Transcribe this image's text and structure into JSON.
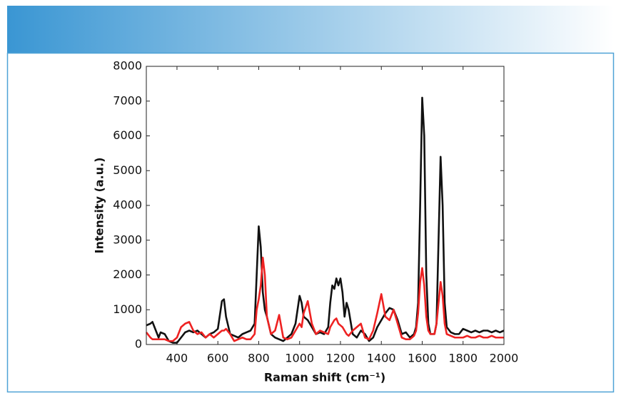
{
  "chart_data": {
    "type": "line",
    "xlabel": "Raman shift (cm⁻¹)",
    "ylabel": "Intensity (a.u.)",
    "xlim": [
      250,
      2000
    ],
    "xticks": [
      400,
      600,
      800,
      1000,
      1200,
      1400,
      1600,
      1800,
      2000
    ],
    "ylim": [
      0,
      8000
    ],
    "yticks": [
      0,
      1000,
      2000,
      3000,
      4000,
      5000,
      6000,
      7000,
      8000
    ],
    "x": [
      250,
      270,
      280,
      290,
      300,
      310,
      320,
      340,
      360,
      380,
      400,
      420,
      440,
      460,
      480,
      500,
      520,
      540,
      560,
      580,
      600,
      620,
      630,
      640,
      660,
      680,
      700,
      720,
      740,
      760,
      780,
      790,
      800,
      810,
      820,
      830,
      840,
      860,
      880,
      900,
      920,
      940,
      960,
      980,
      1000,
      1010,
      1020,
      1040,
      1060,
      1080,
      1100,
      1120,
      1140,
      1150,
      1160,
      1170,
      1180,
      1190,
      1200,
      1210,
      1220,
      1230,
      1240,
      1260,
      1280,
      1300,
      1320,
      1340,
      1360,
      1380,
      1400,
      1420,
      1440,
      1460,
      1480,
      1500,
      1520,
      1540,
      1560,
      1570,
      1580,
      1590,
      1600,
      1610,
      1620,
      1630,
      1640,
      1660,
      1670,
      1680,
      1690,
      1700,
      1710,
      1720,
      1740,
      1760,
      1780,
      1800,
      1820,
      1840,
      1860,
      1880,
      1900,
      1920,
      1940,
      1960,
      1980,
      2000
    ],
    "series": [
      {
        "color": "#111111",
        "values": [
          550,
          600,
          650,
          500,
          350,
          200,
          350,
          300,
          100,
          50,
          50,
          200,
          350,
          400,
          350,
          400,
          300,
          200,
          300,
          350,
          450,
          1250,
          1300,
          800,
          300,
          250,
          200,
          300,
          350,
          400,
          600,
          2000,
          3400,
          2800,
          1500,
          1000,
          800,
          300,
          200,
          150,
          100,
          200,
          300,
          600,
          1400,
          1200,
          800,
          700,
          500,
          300,
          350,
          300,
          500,
          1200,
          1700,
          1600,
          1900,
          1700,
          1900,
          1500,
          800,
          1200,
          1000,
          300,
          200,
          400,
          300,
          100,
          200,
          500,
          700,
          900,
          1050,
          1000,
          700,
          300,
          350,
          200,
          300,
          500,
          1200,
          4000,
          7100,
          6000,
          2000,
          600,
          300,
          300,
          600,
          3000,
          5400,
          4000,
          1200,
          500,
          350,
          300,
          300,
          450,
          400,
          350,
          400,
          350,
          400,
          400,
          350,
          400,
          350,
          400
        ]
      },
      {
        "color": "#ee2222",
        "values": [
          350,
          200,
          150,
          150,
          150,
          150,
          150,
          150,
          100,
          100,
          200,
          500,
          600,
          650,
          400,
          300,
          350,
          200,
          300,
          200,
          300,
          400,
          400,
          450,
          300,
          100,
          150,
          200,
          150,
          150,
          300,
          1000,
          1300,
          1700,
          2500,
          2000,
          800,
          300,
          400,
          850,
          200,
          150,
          200,
          400,
          600,
          500,
          900,
          1250,
          600,
          300,
          400,
          350,
          300,
          500,
          600,
          700,
          750,
          600,
          550,
          500,
          400,
          300,
          250,
          400,
          500,
          600,
          200,
          150,
          400,
          900,
          1450,
          800,
          700,
          1000,
          600,
          200,
          150,
          150,
          250,
          400,
          900,
          1800,
          2200,
          1700,
          800,
          400,
          300,
          300,
          600,
          1200,
          1800,
          1400,
          600,
          300,
          250,
          200,
          200,
          200,
          250,
          200,
          200,
          250,
          200,
          200,
          250,
          200,
          200,
          200
        ]
      }
    ]
  }
}
